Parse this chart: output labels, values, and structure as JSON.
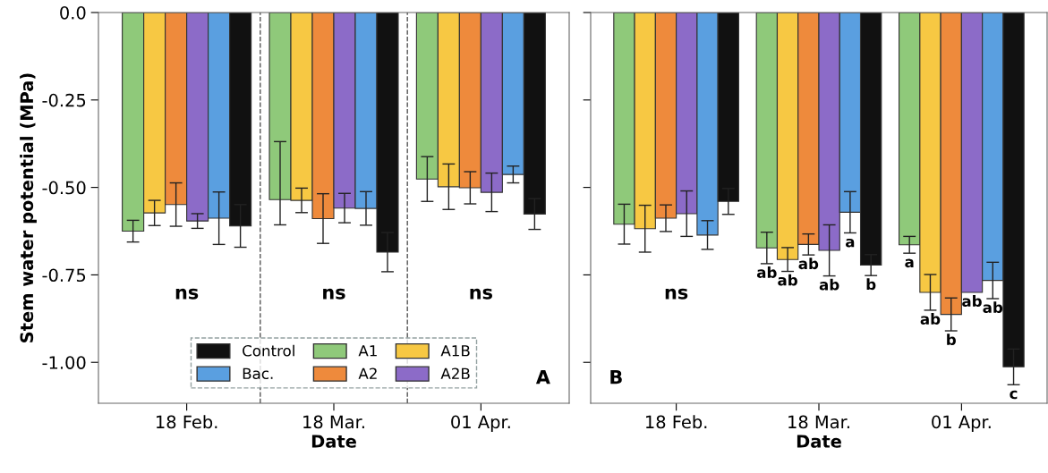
{
  "chart_data": [
    {
      "type": "bar",
      "xlabel": "Date",
      "ylabel": "Stem water potential (MPa)",
      "categories": [
        "18 Feb.",
        "18 Mar.",
        "01 Apr."
      ],
      "series": [
        {
          "name": "A1",
          "color": "#8fc97a",
          "values": [
            -0.625,
            -0.535,
            -0.476
          ],
          "errors": [
            0.031,
            [
              -0.607,
              -0.369
            ],
            0.064
          ]
        },
        {
          "name": "A1B",
          "color": "#f7c843",
          "values": [
            -0.573,
            -0.537,
            -0.498
          ],
          "errors": [
            0.036,
            0.035,
            0.065
          ]
        },
        {
          "name": "A2",
          "color": "#ee8a3c",
          "values": [
            -0.549,
            -0.589,
            -0.501
          ],
          "errors": [
            0.062,
            0.071,
            0.046
          ]
        },
        {
          "name": "A2B",
          "color": "#8c6bc8",
          "values": [
            -0.596,
            -0.559,
            -0.514
          ],
          "errors": [
            0.021,
            0.042,
            0.055
          ]
        },
        {
          "name": "Bac.",
          "color": "#5a9fe0",
          "values": [
            -0.588,
            -0.56,
            -0.463
          ],
          "errors": [
            0.075,
            0.048,
            0.024
          ]
        },
        {
          "name": "Control",
          "color": "#111111",
          "values": [
            -0.61,
            -0.685,
            -0.576
          ],
          "errors": [
            0.061,
            0.056,
            0.044
          ]
        }
      ],
      "ylim": [
        -1.117,
        0
      ],
      "yticks": [
        {
          "value": 0,
          "label": "0.0"
        },
        {
          "value": -0.25,
          "label": "-0.25"
        },
        {
          "value": -0.5,
          "label": "-0.50"
        },
        {
          "value": -0.75,
          "label": "-0.75"
        },
        {
          "value": -1.0,
          "label": "-1.00"
        }
      ],
      "annotations": [
        "ns",
        "ns",
        "ns",
        "A"
      ],
      "legend": "bottom",
      "grid": false
    },
    {
      "type": "bar",
      "xlabel": "Date",
      "categories": [
        "18 Feb.",
        "18 Mar.",
        "01 Apr."
      ],
      "series": [
        {
          "color": "#8fc97a",
          "values": [
            -0.605,
            -0.673,
            -0.664
          ],
          "errors": [
            0.057,
            0.045,
            0.024
          ],
          "value_labels": [
            null,
            "ab",
            "a"
          ]
        },
        {
          "color": "#f7c843",
          "values": [
            -0.618,
            -0.706,
            -0.8
          ],
          "errors": [
            0.067,
            0.034,
            0.051
          ],
          "value_labels": [
            null,
            "ab",
            "ab"
          ]
        },
        {
          "color": "#ee8a3c",
          "values": [
            -0.588,
            -0.663,
            -0.863
          ],
          "errors": [
            0.038,
            0.03,
            0.047
          ],
          "value_labels": [
            null,
            "ab",
            "b"
          ]
        },
        {
          "color": "#8c6bc8",
          "values": [
            -0.575,
            -0.68,
            -0.8
          ],
          "errors": [
            0.065,
            0.073,
            null
          ],
          "value_labels": [
            null,
            "ab",
            "ab"
          ]
        },
        {
          "color": "#5a9fe0",
          "values": [
            -0.636,
            -0.571,
            -0.766
          ],
          "errors": [
            0.041,
            0.059,
            0.052
          ],
          "value_labels": [
            null,
            "a",
            "ab"
          ]
        },
        {
          "color": "#111111",
          "values": [
            -0.54,
            -0.722,
            -1.013
          ],
          "errors": [
            0.037,
            0.03,
            0.051
          ],
          "value_labels": [
            null,
            "b",
            "c"
          ]
        }
      ],
      "ylim": [
        -1.117,
        0
      ],
      "yticks": [
        {
          "value": 0,
          "label": null
        },
        {
          "value": -0.25,
          "label": null
        },
        {
          "value": -0.5,
          "label": null
        },
        {
          "value": -0.75,
          "label": null
        },
        {
          "value": -1.0,
          "label": null
        }
      ],
      "annotations": [
        "ns",
        "B"
      ],
      "tick_labels": "x",
      "grid": false
    }
  ]
}
